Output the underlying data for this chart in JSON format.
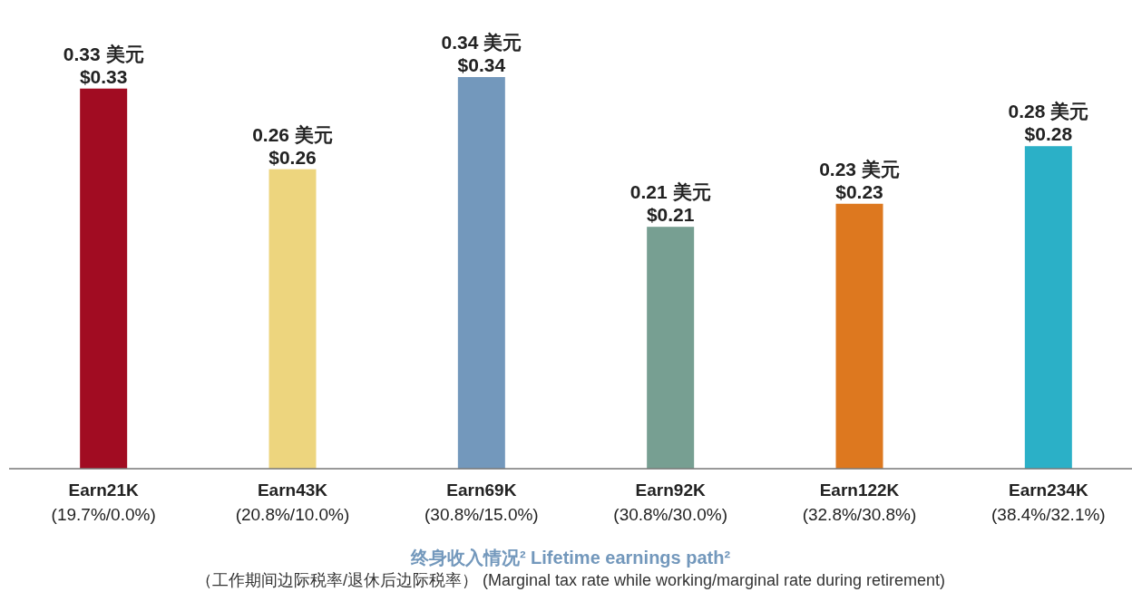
{
  "chart_data": {
    "type": "bar",
    "categories": [
      "Earn21K\n(19.7%/0.0%)",
      "Earn43K\n(20.8%/10.0%)",
      "Earn69K\n(30.8%/15.0%)",
      "Earn92K\n(30.8%/30.0%)",
      "Earn122K\n(32.8%/30.8%)",
      "Earn234K\n(38.4%/32.1%)"
    ],
    "values": [
      0.33,
      0.26,
      0.34,
      0.21,
      0.23,
      0.28
    ],
    "colors": [
      "#a10c22",
      "#edd57e",
      "#7398bc",
      "#779f92",
      "#dd781f",
      "#2bb0c7"
    ],
    "value_labels": [
      "0.33 美元\n$0.33",
      "0.26 美元\n$0.26",
      "0.34 美元\n$0.34",
      "0.21 美元\n$0.21",
      "0.23 美元\n$0.23",
      "0.28 美元\n$0.28"
    ],
    "xlabel": "终身收入情况² Lifetime earnings path²",
    "annotations": [
      "（工作期间边际税率/退休后边际税率） (Marginal tax rate while working/marginal rate during retirement)"
    ],
    "grid": false
  }
}
